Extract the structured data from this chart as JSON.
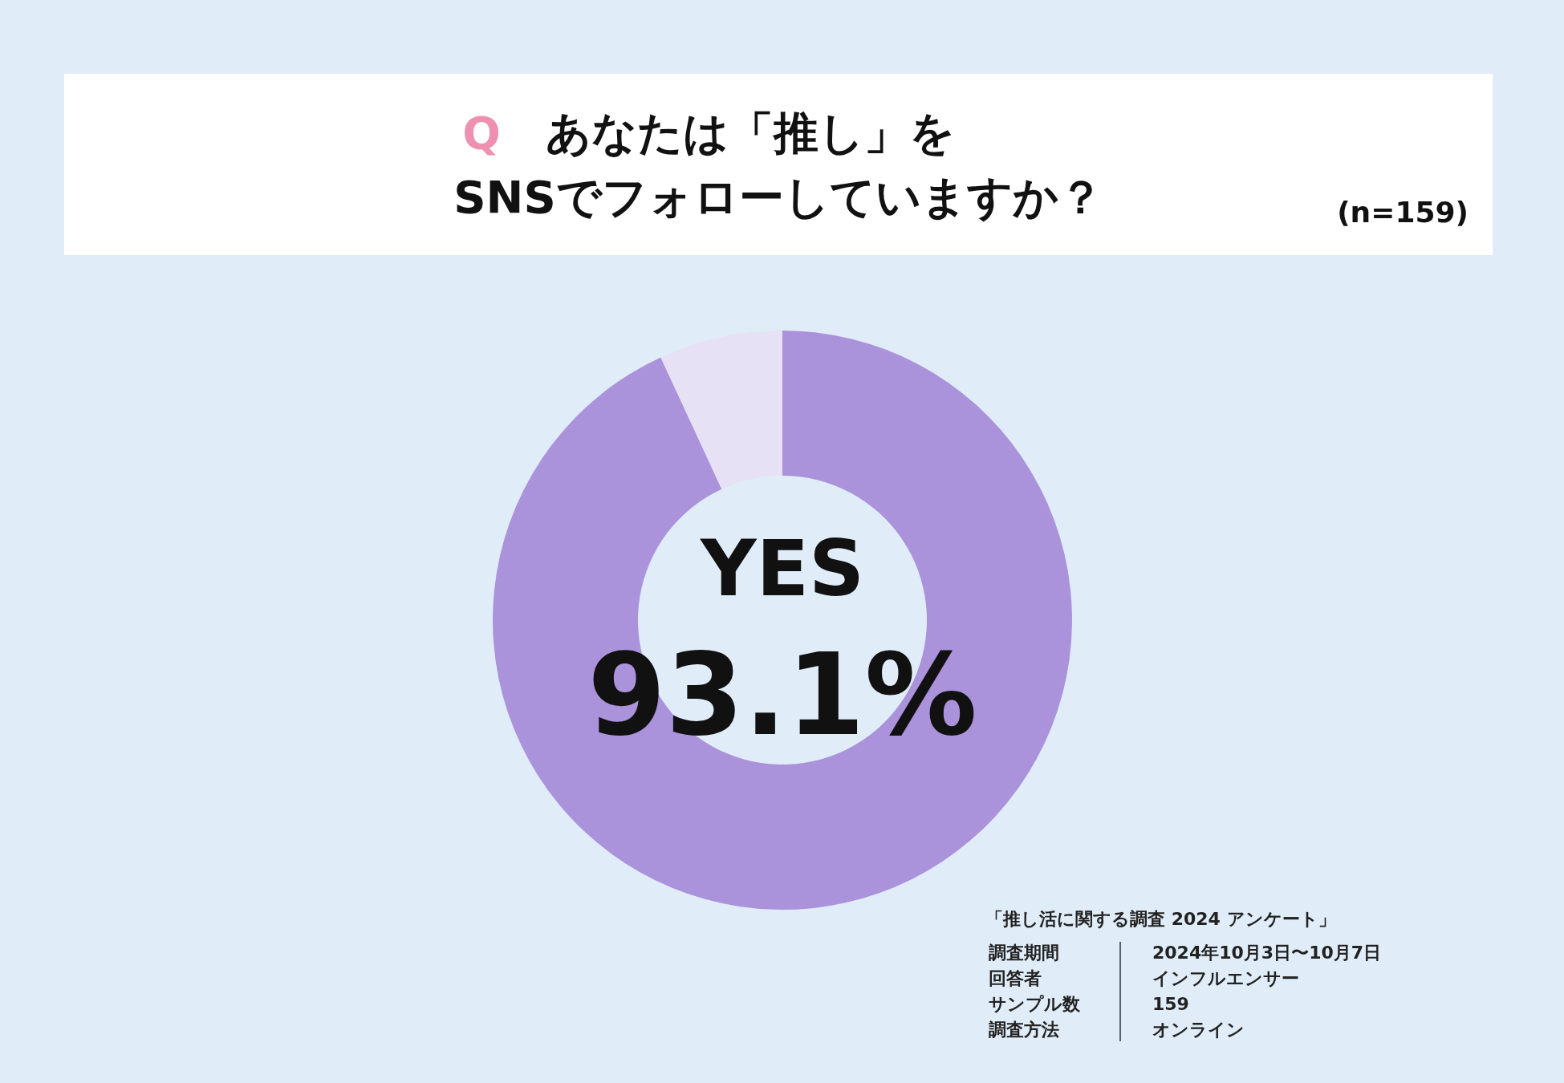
{
  "chart_data": {
    "type": "donut",
    "title": "Q あなたは「推し」を\nSNSでフォローしていますか？",
    "subtitle": "(n=159)",
    "categories": [
      "YES",
      null
    ],
    "values": [
      93.1,
      6.9
    ],
    "colors": [
      "#ab93dc",
      "#e6e1f4"
    ],
    "value_labels": [
      "93.1%",
      null
    ],
    "annotations": [
      "「推し活に関する調査 2024 アンケート」",
      "調査期間",
      "2024年10月3日〜10月7日",
      "回答者",
      "インフルエンサー",
      "サンプル数",
      "159",
      "調査方法",
      "オンライン"
    ]
  }
}
